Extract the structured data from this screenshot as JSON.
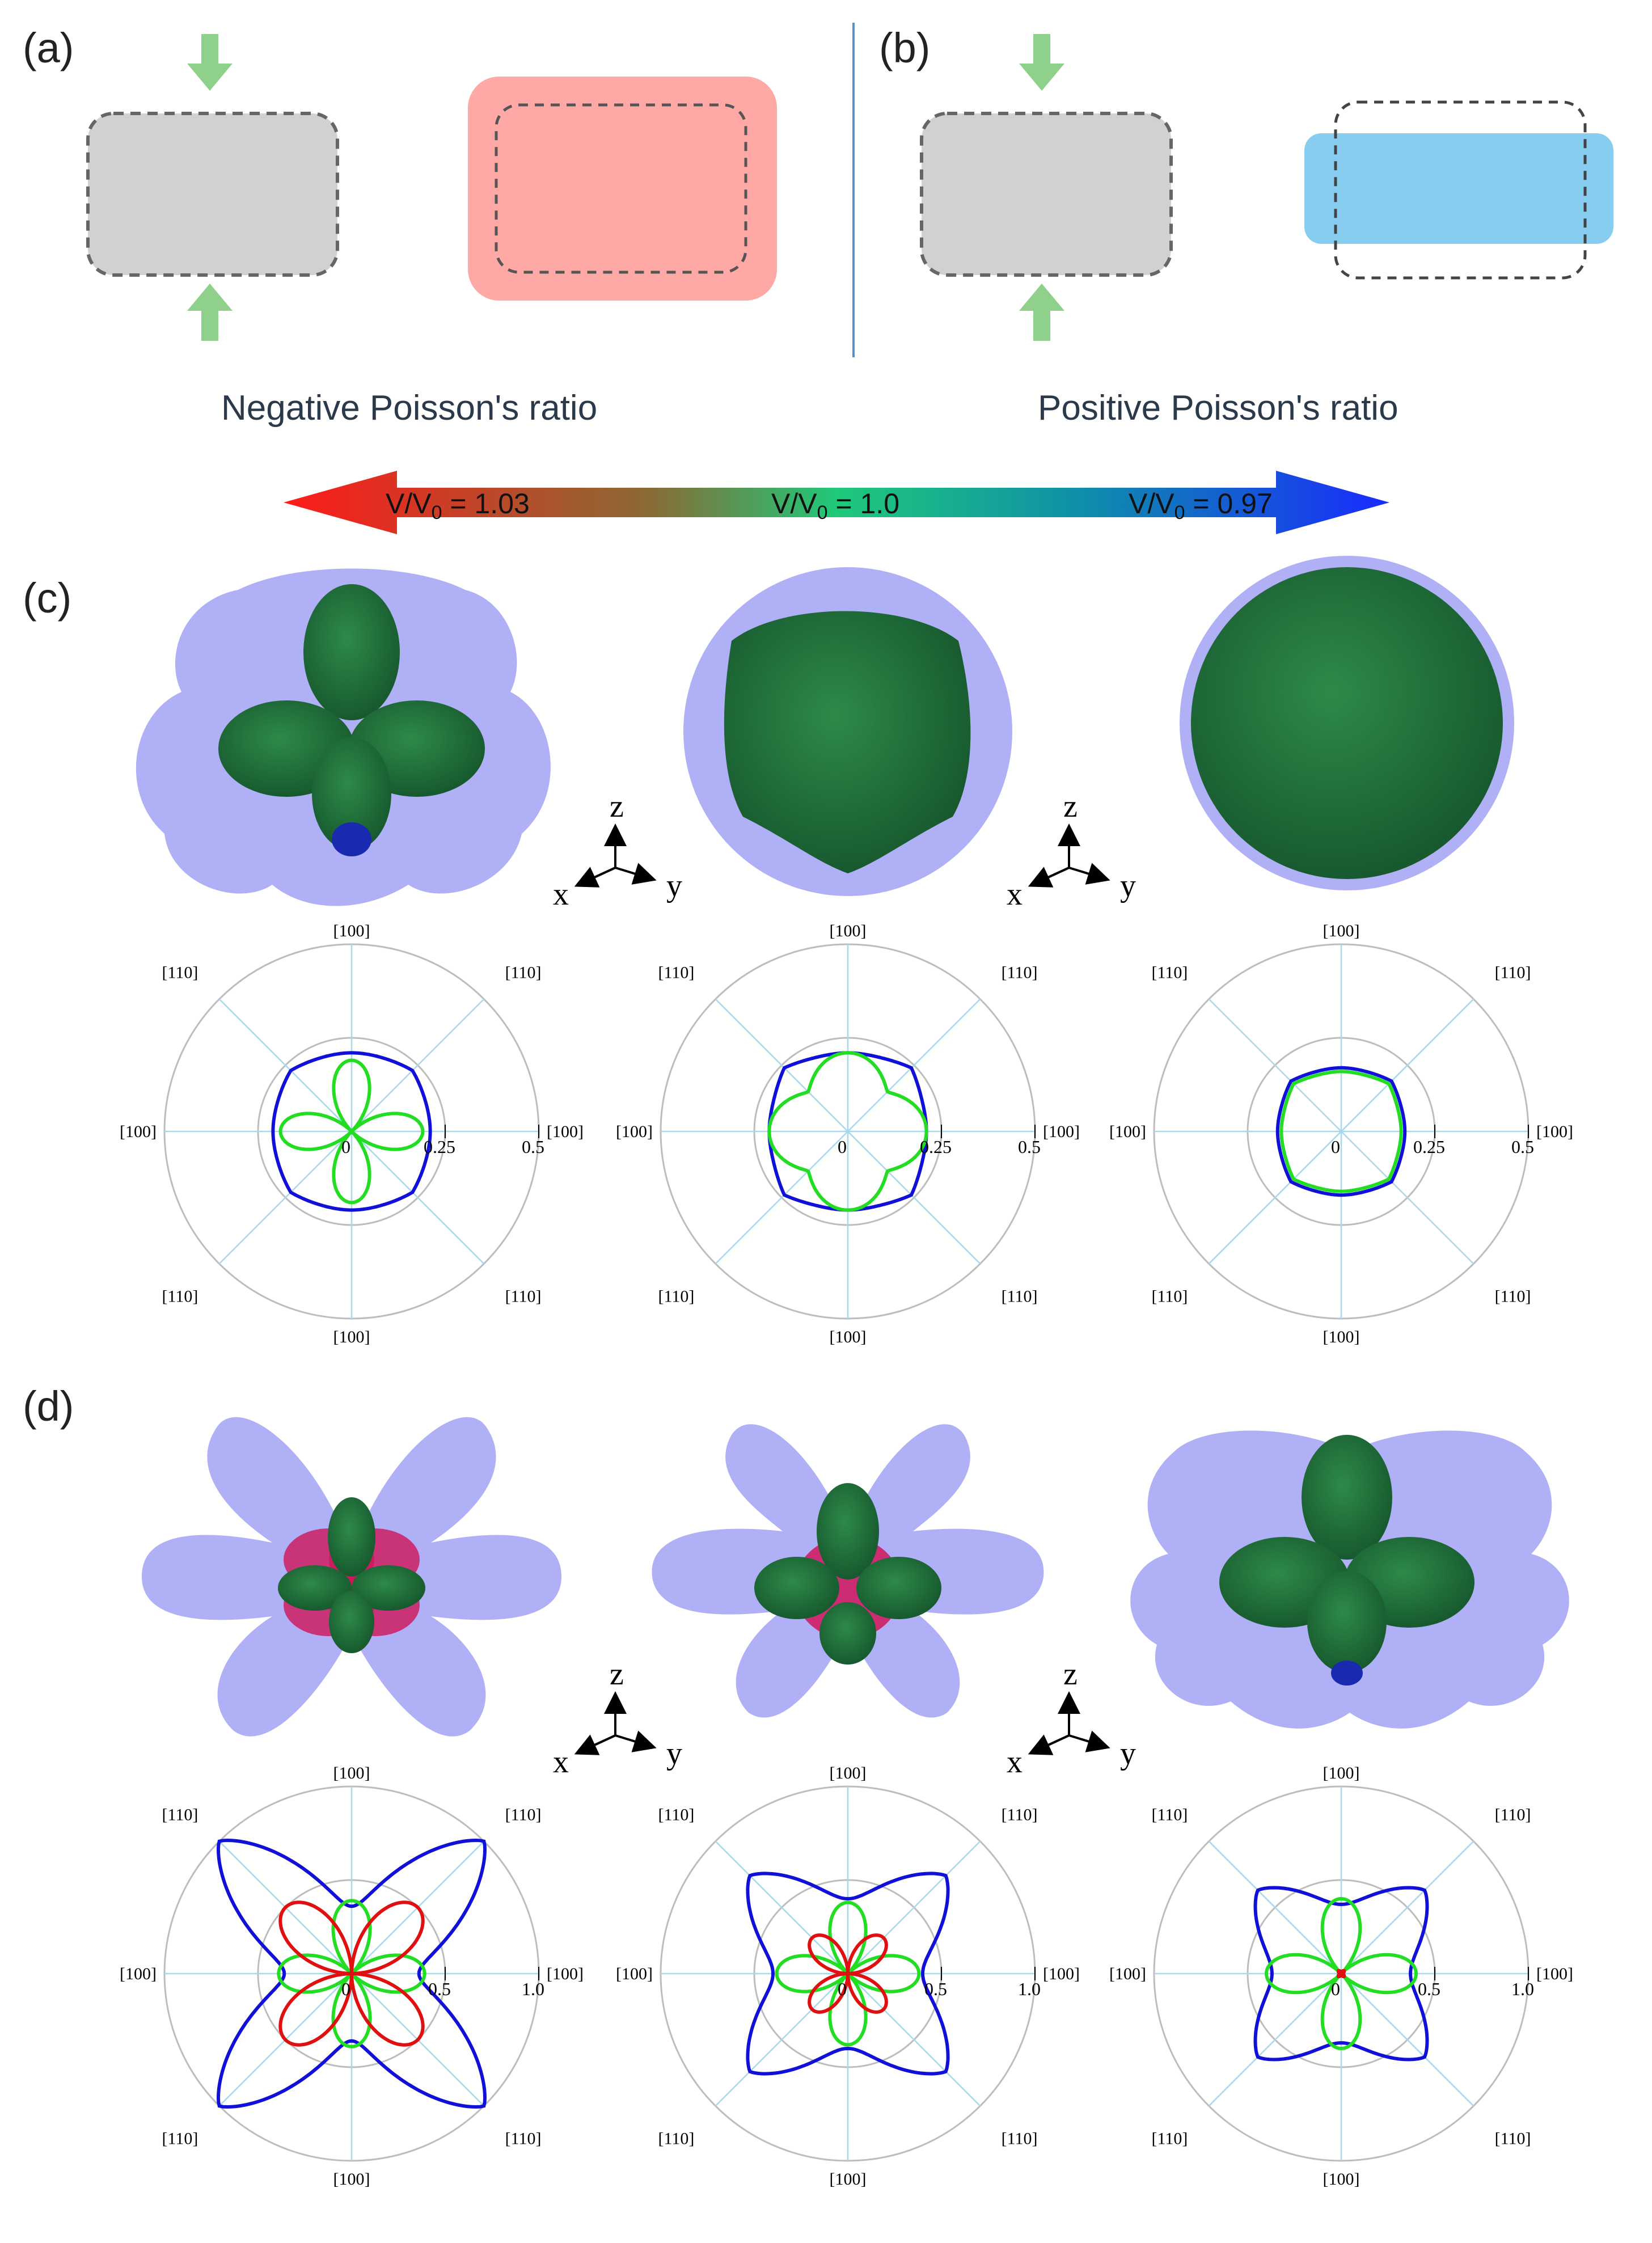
{
  "panels": {
    "a": "(a)",
    "b": "(b)",
    "c": "(c)",
    "d": "(d)"
  },
  "captions": {
    "negative": "Negative Poisson's ratio",
    "positive": "Positive Poisson's ratio"
  },
  "scale_bar": {
    "left": "V/V",
    "left_sub": "0",
    "left_value": " = 1.03",
    "mid": "V/V",
    "mid_sub": "0",
    "mid_value": " = 1.0",
    "right": "V/V",
    "right_sub": "0",
    "right_value": " = 0.97",
    "colors": [
      "#ff1a1a",
      "#8a6a35",
      "#1fc97a",
      "#1a3aff"
    ]
  },
  "axes_glyph": {
    "z": "z",
    "x": "x",
    "y": "y"
  },
  "polar_labels": {
    "top": "[100]",
    "bottom": "[100]",
    "left": "[100]",
    "right": "[100]",
    "diag": "[110]"
  },
  "colors": {
    "arrow": "#8fd18a",
    "gray_box": "#d3d0d0",
    "pink_box": "#ffa9a6",
    "blue_box": "#87cdf0",
    "blue_curve": "#1010d8",
    "green_curve": "#22dd22",
    "red_curve": "#e01010",
    "divider": "#5b8fc0",
    "surface_blue": "#7c7cf0",
    "surface_green": "#1f6a36",
    "surface_red": "#d0155a"
  },
  "chart_data": [
    {
      "type": "polar",
      "row": "c",
      "index": 1,
      "ticks": [
        "0",
        "0.25",
        "0.5"
      ],
      "rmax": 0.5,
      "curves": [
        {
          "color": "blue",
          "shape": "squircle",
          "r_axis": 0.21,
          "r_diag": 0.23
        },
        {
          "color": "green",
          "shape": "four-lobe",
          "r_axis": 0.19,
          "r_diag": 0.0
        }
      ]
    },
    {
      "type": "polar",
      "row": "c",
      "index": 2,
      "ticks": [
        "0",
        "0.25",
        "0.5"
      ],
      "rmax": 0.5,
      "curves": [
        {
          "color": "blue",
          "shape": "squircle",
          "r_axis": 0.21,
          "r_diag": 0.24
        },
        {
          "color": "green",
          "shape": "four-lobe",
          "r_axis": 0.21,
          "r_diag": 0.15
        }
      ]
    },
    {
      "type": "polar",
      "row": "c",
      "index": 3,
      "ticks": [
        "0",
        "0.25",
        "0.5"
      ],
      "rmax": 0.5,
      "curves": [
        {
          "color": "blue",
          "shape": "squircle",
          "r_axis": 0.17,
          "r_diag": 0.19
        },
        {
          "color": "green",
          "shape": "squircle",
          "r_axis": 0.16,
          "r_diag": 0.18
        }
      ]
    },
    {
      "type": "polar",
      "row": "d",
      "index": 1,
      "ticks": [
        "0",
        "0.5",
        "1.0"
      ],
      "rmax": 1.0,
      "curves": [
        {
          "color": "blue",
          "shape": "four-lobe",
          "r_axis": 0.36,
          "r_diag": 1.0
        },
        {
          "color": "green",
          "shape": "four-lobe",
          "r_axis": 0.39,
          "r_diag": 0.0
        },
        {
          "color": "red",
          "shape": "four-lobe-diag",
          "r_axis": 0.0,
          "r_diag": 0.5
        }
      ]
    },
    {
      "type": "polar",
      "row": "d",
      "index": 2,
      "ticks": [
        "0",
        "0.5",
        "1.0"
      ],
      "rmax": 1.0,
      "curves": [
        {
          "color": "blue",
          "shape": "four-lobe",
          "r_axis": 0.4,
          "r_diag": 0.74
        },
        {
          "color": "green",
          "shape": "four-lobe",
          "r_axis": 0.38,
          "r_diag": 0.0
        },
        {
          "color": "red",
          "shape": "four-lobe-diag",
          "r_axis": 0.0,
          "r_diag": 0.27
        }
      ]
    },
    {
      "type": "polar",
      "row": "d",
      "index": 3,
      "ticks": [
        "0",
        "0.5",
        "1.0"
      ],
      "rmax": 1.0,
      "curves": [
        {
          "color": "blue",
          "shape": "four-lobe",
          "r_axis": 0.37,
          "r_diag": 0.63
        },
        {
          "color": "green",
          "shape": "four-lobe",
          "r_axis": 0.4,
          "r_diag": 0.0
        },
        {
          "color": "red",
          "shape": "four-lobe-diag",
          "r_axis": 0.0,
          "r_diag": 0.02
        }
      ]
    }
  ]
}
